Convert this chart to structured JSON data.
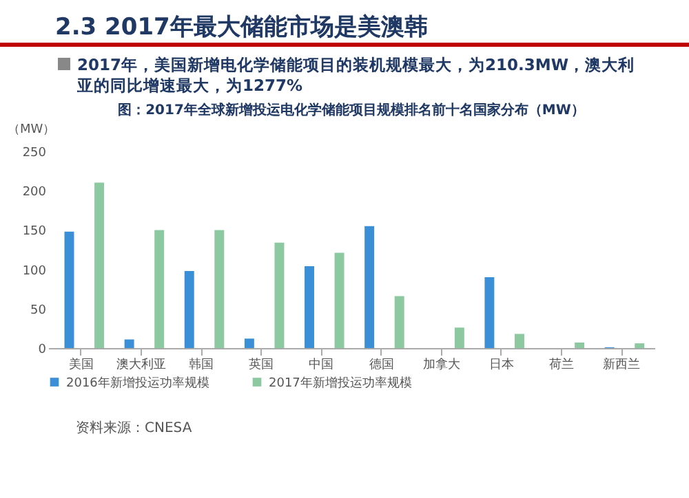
{
  "chart_data": {
    "type": "bar",
    "title": "2.3 2017年最大储能市场是美澳韩",
    "subtitle": "2017年，美国新增电化学储能项目的装机规模最大，为210.3MW，澳大利亚的同比增速最大，为1277%",
    "ylabel": "（MW）",
    "annotations": [
      "图：2017年全球新增投运电化学储能项目规模排名前十名国家分布（MW）",
      "资料来源：CNESA"
    ],
    "categories": [
      "美国",
      "澳大利亚",
      "韩国",
      "英国",
      "中国",
      "德国",
      "加拿大",
      "日本",
      "荷兰",
      "新西兰"
    ],
    "series": [
      {
        "name": "2016年新增投运功率规模",
        "color": "#3b8fd6",
        "values": [
          148,
          11,
          98,
          12,
          104,
          155,
          0,
          90,
          0,
          1
        ]
      },
      {
        "name": "2017年新增投运功率规模",
        "color": "#8cc9a0",
        "values": [
          210.3,
          150,
          150,
          134,
          121,
          66,
          26,
          18,
          7,
          6
        ]
      }
    ],
    "ylim": [
      0,
      250
    ],
    "yticks": [
      0,
      50,
      100,
      150,
      200,
      250
    ],
    "grid": false,
    "legend": "bottom"
  }
}
